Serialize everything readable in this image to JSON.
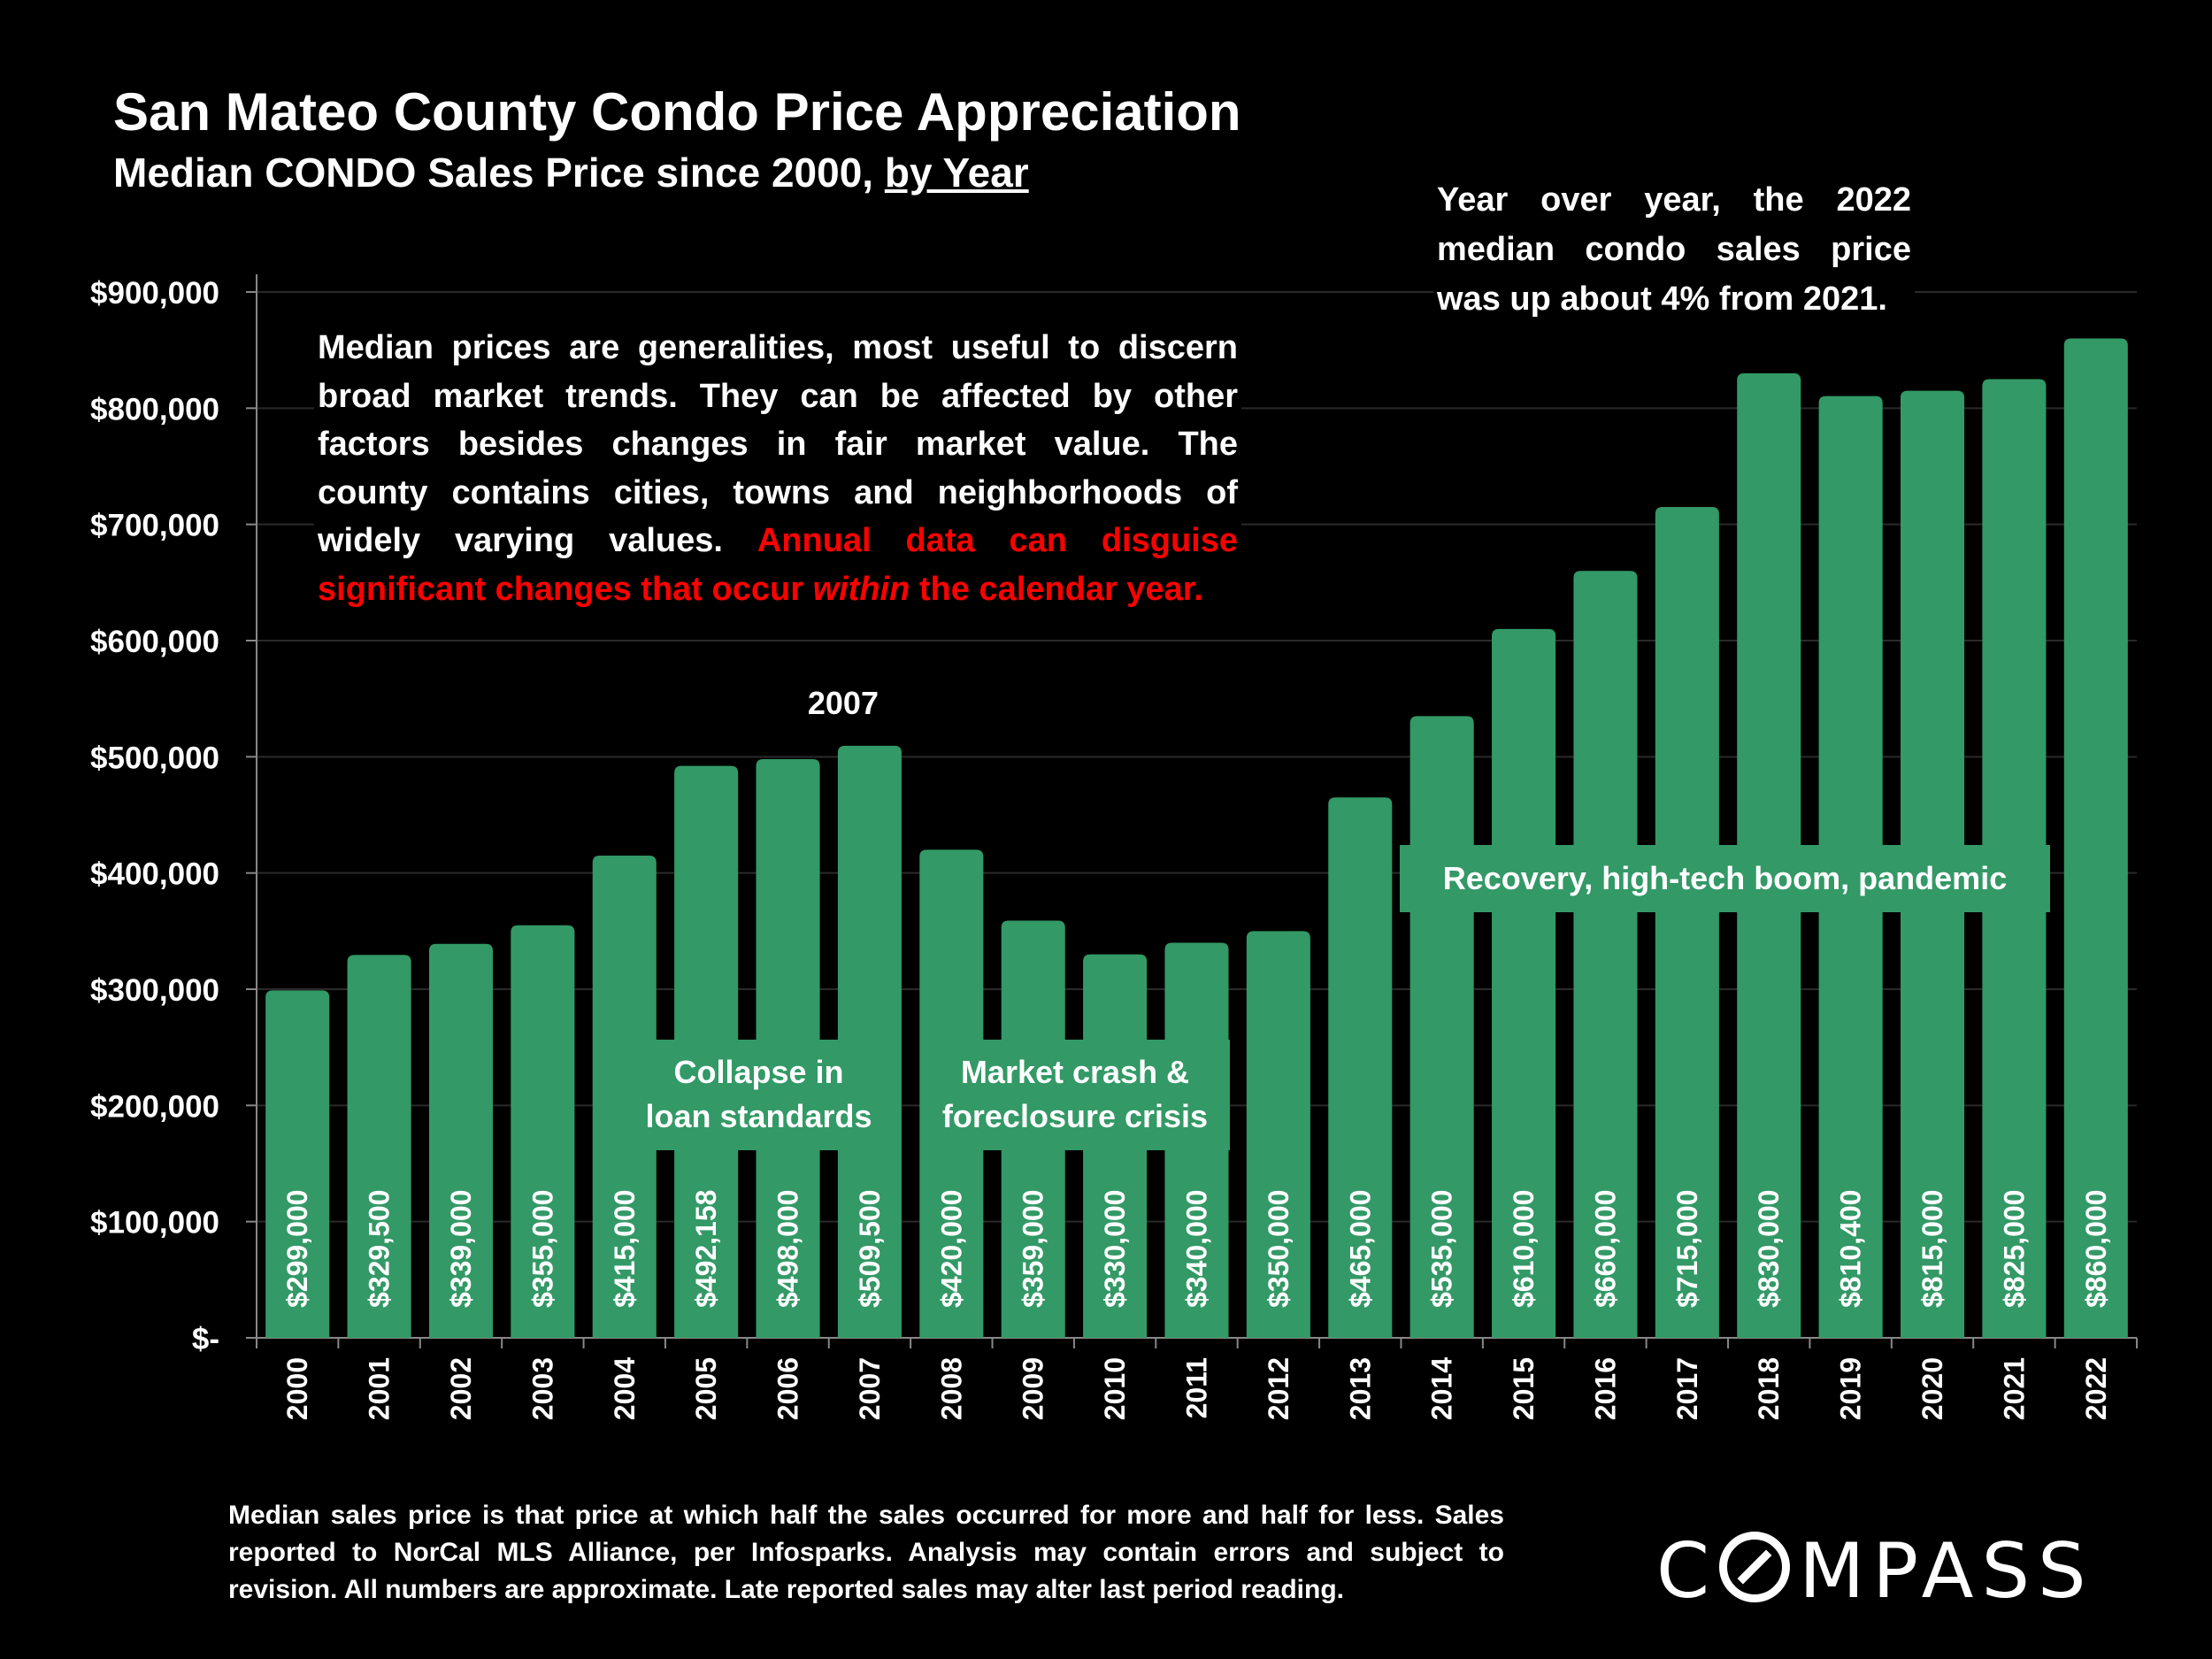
{
  "header": {
    "title": "San Mateo County Condo Price Appreciation",
    "subtitle_main": "Median CONDO Sales Price since 2000, ",
    "subtitle_underlined": "by Year"
  },
  "callout_yoy": {
    "lines": [
      "Year over year, the 2022",
      "median condo sales price",
      "was up about 4% from 2021."
    ]
  },
  "note": {
    "lines_white": [
      "Median prices are generalities, most useful to discern",
      "broad market trends. They can be affected by other",
      "factors besides changes in fair market value. The",
      "county contains cities, towns and neighborhoods of",
      "widely varying values."
    ],
    "line5_red": "Annual data can disguise",
    "line6_red_before": "significant changes that occur ",
    "line6_red_italic": "within",
    "line6_red_after": " the calendar year."
  },
  "annotations": {
    "peak_label": "2007",
    "collapse": [
      "Collapse in",
      "loan standards"
    ],
    "crash": [
      "Market crash &",
      "foreclosure crisis"
    ],
    "recovery": "Recovery, high-tech boom, pandemic"
  },
  "footer": {
    "lines": [
      "Median sales price is that price at which half the sales occurred for more and half for less. Sales",
      "reported to NorCal MLS Alliance, per Infosparks. Analysis may contain errors and subject to",
      "revision. All numbers are approximate. Late reported sales may alter last period reading."
    ]
  },
  "logo": {
    "before": "C",
    "after": "MPASS"
  },
  "colors": {
    "bar": "#339966",
    "background": "#000000",
    "accent_red": "#ff0000",
    "text": "#ffffff"
  },
  "chart_data": {
    "type": "bar",
    "categories": [
      "2000",
      "2001",
      "2002",
      "2003",
      "2004",
      "2005",
      "2006",
      "2007",
      "2008",
      "2009",
      "2010",
      "2011",
      "2012",
      "2013",
      "2014",
      "2015",
      "2016",
      "2017",
      "2018",
      "2019",
      "2020",
      "2021",
      "2022"
    ],
    "values": [
      299000,
      329500,
      339000,
      355000,
      415000,
      492158,
      498000,
      509500,
      420000,
      359000,
      330000,
      340000,
      350000,
      465000,
      535000,
      610000,
      660000,
      715000,
      830000,
      810400,
      815000,
      825000,
      860000
    ],
    "data_labels": [
      "$299,000",
      "$329,500",
      "$339,000",
      "$355,000",
      "$415,000",
      "$492,158",
      "$498,000",
      "$509,500",
      "$420,000",
      "$359,000",
      "$330,000",
      "$340,000",
      "$350,000",
      "$465,000",
      "$535,000",
      "$610,000",
      "$660,000",
      "$715,000",
      "$830,000",
      "$810,400",
      "$815,000",
      "$825,000",
      "$860,000"
    ],
    "y_ticks": [
      0,
      100000,
      200000,
      300000,
      400000,
      500000,
      600000,
      700000,
      800000,
      900000
    ],
    "y_tick_labels": [
      "$-",
      "$100,000",
      "$200,000",
      "$300,000",
      "$400,000",
      "$500,000",
      "$600,000",
      "$700,000",
      "$800,000",
      "$900,000"
    ],
    "ylim": [
      0,
      900000
    ],
    "grid": true
  }
}
